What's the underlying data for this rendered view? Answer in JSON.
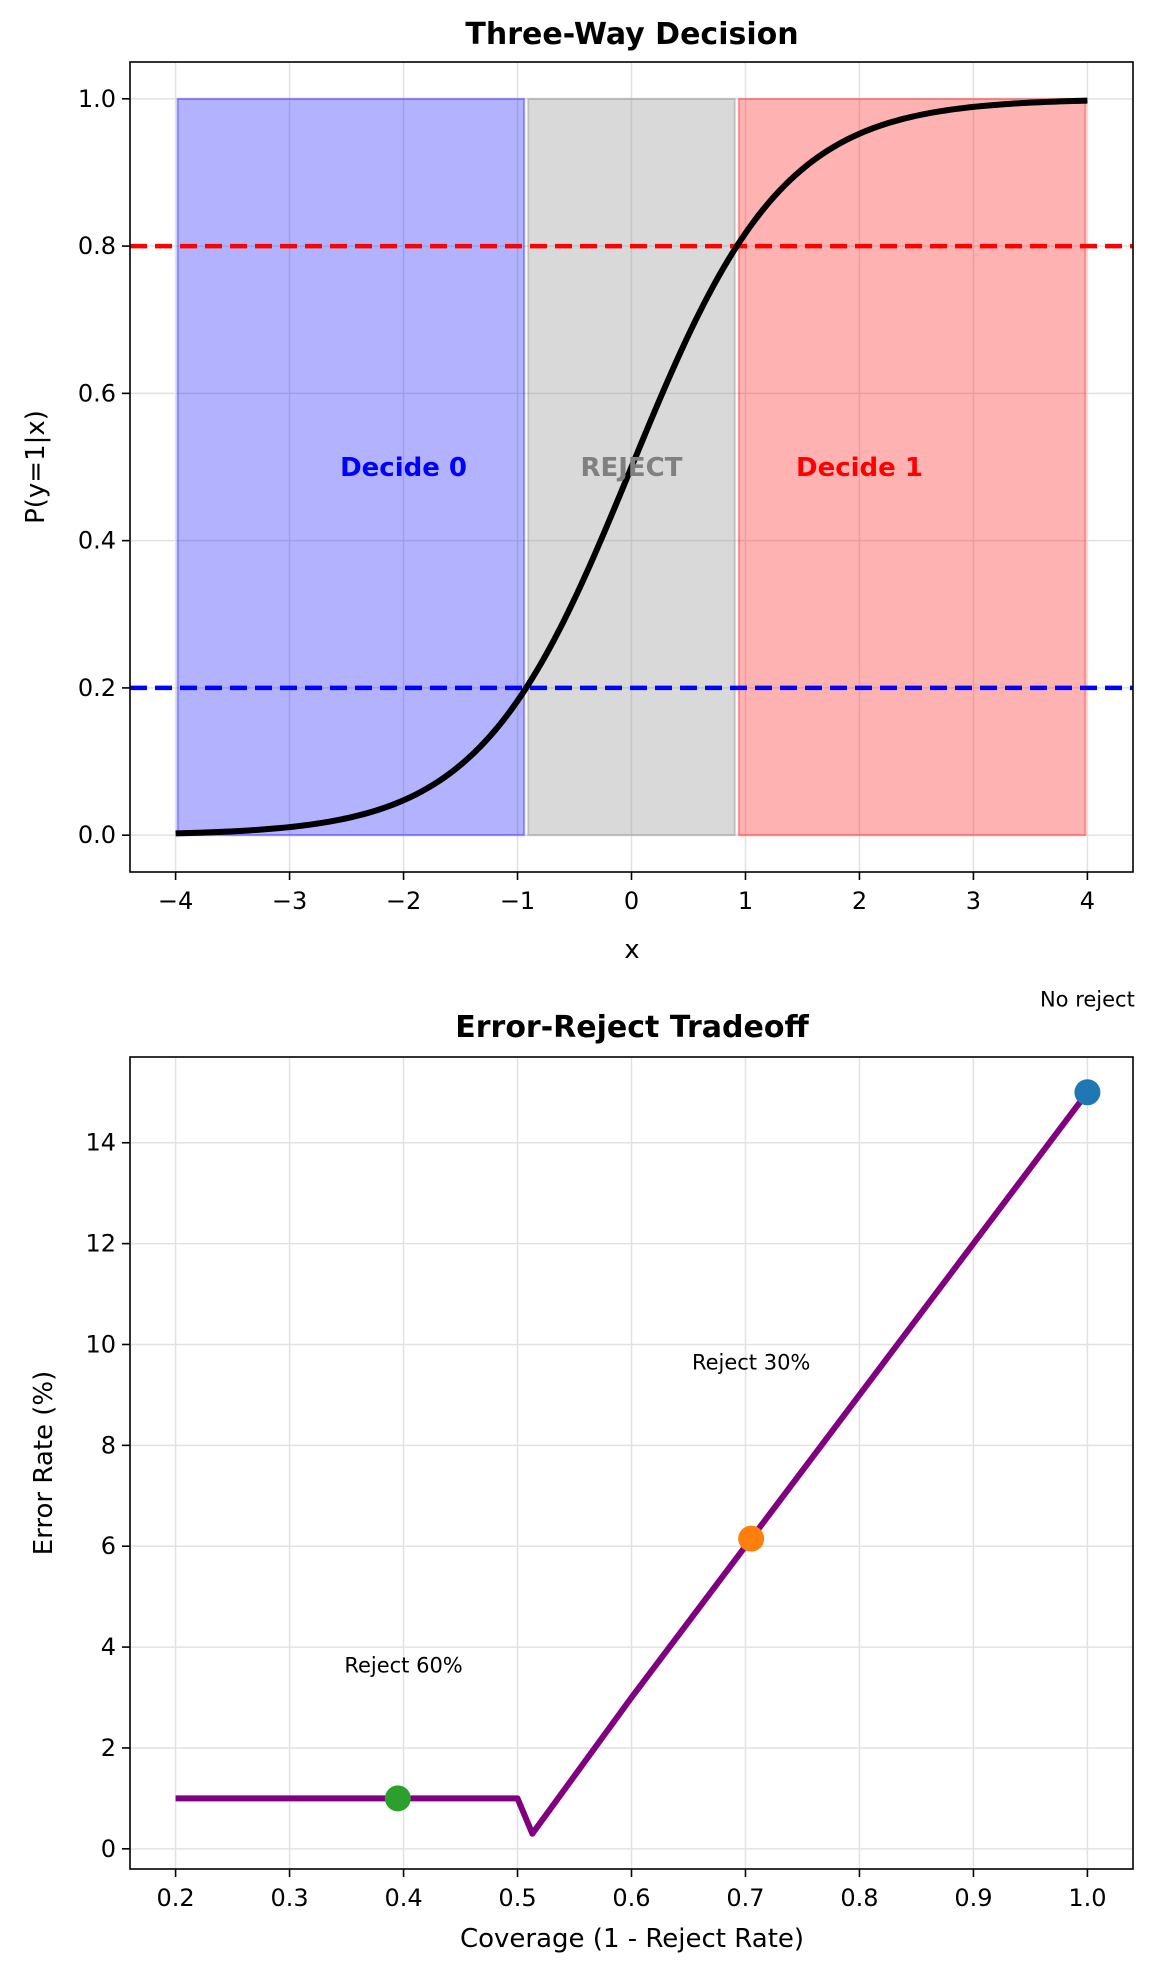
{
  "chart_data": [
    {
      "type": "line",
      "title": "Three-Way Decision",
      "xlabel": "x",
      "ylabel": "P(y=1|x)",
      "xlim": [
        -4.4,
        4.4
      ],
      "ylim": [
        -0.05,
        1.05
      ],
      "xticks": [
        -4,
        -3,
        -2,
        -1,
        0,
        1,
        2,
        3,
        4
      ],
      "xtick_labels": [
        "−4",
        "−3",
        "−2",
        "−1",
        "0",
        "1",
        "2",
        "3",
        "4"
      ],
      "yticks": [
        0.0,
        0.2,
        0.4,
        0.6,
        0.8,
        1.0
      ],
      "ytick_labels": [
        "0.0",
        "0.2",
        "0.4",
        "0.6",
        "0.8",
        "1.0"
      ],
      "grid": true,
      "series": [
        {
          "function": "sigmoid(1.5x)",
          "x": [
            -4,
            -3.5,
            -3,
            -2.5,
            -2,
            -1.5,
            -1,
            -0.5,
            0,
            0.5,
            1,
            1.5,
            2,
            2.5,
            3,
            3.5,
            4
          ],
          "y": [
            0.002,
            0.005,
            0.011,
            0.023,
            0.047,
            0.095,
            0.182,
            0.321,
            0.5,
            0.679,
            0.818,
            0.905,
            0.953,
            0.977,
            0.989,
            0.995,
            0.998
          ],
          "color": "#000000"
        }
      ],
      "thresholds": [
        {
          "y": 0.8,
          "color": "#ff0000"
        },
        {
          "y": 0.2,
          "color": "#0000ff"
        }
      ],
      "regions": [
        {
          "x0": -4,
          "x1": -0.924,
          "y0": 0,
          "y1": 1,
          "color": "#0000ff",
          "label": "Decide 0",
          "label_x": -2,
          "label_y": 0.5
        },
        {
          "x0": -0.924,
          "x1": 0.924,
          "y0": 0,
          "y1": 1,
          "color": "#808080",
          "label": "REJECT",
          "label_x": 0,
          "label_y": 0.5
        },
        {
          "x0": 0.924,
          "x1": 4,
          "y0": 0,
          "y1": 1,
          "color": "#ff0000",
          "label": "Decide 1",
          "label_x": 2,
          "label_y": 0.5
        }
      ]
    },
    {
      "type": "line",
      "title": "Error-Reject Tradeoff",
      "xlabel": "Coverage (1 - Reject Rate)",
      "ylabel": "Error Rate (%)",
      "xlim": [
        0.16,
        1.04
      ],
      "ylim": [
        -0.4,
        15.7
      ],
      "xticks": [
        0.2,
        0.3,
        0.4,
        0.5,
        0.6,
        0.7,
        0.8,
        0.9,
        1.0
      ],
      "xtick_labels": [
        "0.2",
        "0.3",
        "0.4",
        "0.5",
        "0.6",
        "0.7",
        "0.8",
        "0.9",
        "1.0"
      ],
      "yticks": [
        0,
        2,
        4,
        6,
        8,
        10,
        12,
        14
      ],
      "ytick_labels": [
        "0",
        "2",
        "4",
        "6",
        "8",
        "10",
        "12",
        "14"
      ],
      "grid": true,
      "series": [
        {
          "x": [
            0.2,
            0.3,
            0.4,
            0.5,
            0.513,
            0.6,
            0.7,
            0.8,
            0.9,
            1.0
          ],
          "y": [
            1.0,
            1.0,
            1.0,
            1.0,
            0.3,
            3.0,
            6.0,
            9.0,
            12.0,
            15.0
          ],
          "color": "#800080"
        }
      ],
      "points": [
        {
          "x": 1.0,
          "y": 15.0,
          "color": "#1f77b4",
          "label": "No reject",
          "label_x": 1.0,
          "label_y": 16.7
        },
        {
          "x": 0.705,
          "y": 6.15,
          "color": "#ff7f0e",
          "label": "Reject 30%",
          "label_x": 0.705,
          "label_y": 9.5
        },
        {
          "x": 0.395,
          "y": 1.0,
          "color": "#2ca02c",
          "label": "Reject 60%",
          "label_x": 0.4,
          "label_y": 3.5
        }
      ]
    }
  ]
}
